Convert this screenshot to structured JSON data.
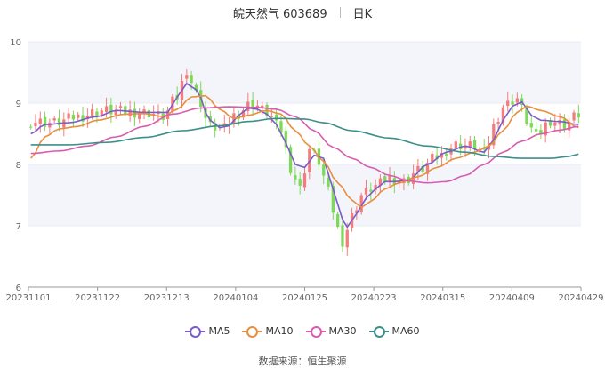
{
  "header": {
    "name": "皖天然气 603689",
    "period": "日K"
  },
  "source": "数据来源：恒生聚源",
  "chart_data": {
    "type": "candlestick_with_lines",
    "ylim": [
      6,
      10
    ],
    "yticks": [
      6,
      7,
      8,
      9,
      10
    ],
    "xticks": [
      "20231101",
      "20231122",
      "20231213",
      "20240104",
      "20240125",
      "20240223",
      "20240315",
      "20240409",
      "20240429"
    ],
    "n_days": 117,
    "colors": {
      "up": "#f47c7c",
      "down": "#7ed957",
      "grid": "#e8ecf4",
      "band": "#f3f5fb"
    },
    "series": [
      {
        "name": "MA5",
        "color": "#7b5cc8",
        "anchors": [
          [
            0,
            8.5
          ],
          [
            3,
            8.65
          ],
          [
            8,
            8.68
          ],
          [
            14,
            8.78
          ],
          [
            18,
            8.88
          ],
          [
            24,
            8.85
          ],
          [
            29,
            8.85
          ],
          [
            31,
            9.1
          ],
          [
            33,
            9.32
          ],
          [
            35,
            9.22
          ],
          [
            38,
            8.72
          ],
          [
            40,
            8.6
          ],
          [
            42,
            8.63
          ],
          [
            44,
            8.8
          ],
          [
            46,
            8.92
          ],
          [
            48,
            8.9
          ],
          [
            50,
            8.82
          ],
          [
            52,
            8.65
          ],
          [
            54,
            8.35
          ],
          [
            56,
            8.0
          ],
          [
            58,
            7.95
          ],
          [
            60,
            8.15
          ],
          [
            62,
            8.1
          ],
          [
            64,
            7.6
          ],
          [
            66,
            7.1
          ],
          [
            67,
            6.98
          ],
          [
            69,
            7.2
          ],
          [
            71,
            7.45
          ],
          [
            73,
            7.6
          ],
          [
            75,
            7.72
          ],
          [
            77,
            7.72
          ],
          [
            80,
            7.75
          ],
          [
            84,
            8.0
          ],
          [
            88,
            8.2
          ],
          [
            92,
            8.3
          ],
          [
            96,
            8.2
          ],
          [
            98,
            8.4
          ],
          [
            100,
            8.72
          ],
          [
            102,
            8.95
          ],
          [
            104,
            9.02
          ],
          [
            106,
            8.8
          ],
          [
            108,
            8.72
          ],
          [
            112,
            8.7
          ],
          [
            116,
            8.65
          ]
        ]
      },
      {
        "name": "MA10",
        "color": "#e88e3e",
        "anchors": [
          [
            0,
            8.1
          ],
          [
            3,
            8.45
          ],
          [
            6,
            8.58
          ],
          [
            10,
            8.62
          ],
          [
            14,
            8.72
          ],
          [
            20,
            8.82
          ],
          [
            24,
            8.83
          ],
          [
            28,
            8.78
          ],
          [
            31,
            8.9
          ],
          [
            34,
            9.1
          ],
          [
            37,
            9.12
          ],
          [
            40,
            8.9
          ],
          [
            43,
            8.75
          ],
          [
            46,
            8.8
          ],
          [
            50,
            8.88
          ],
          [
            53,
            8.82
          ],
          [
            56,
            8.55
          ],
          [
            59,
            8.3
          ],
          [
            62,
            8.05
          ],
          [
            65,
            7.7
          ],
          [
            68,
            7.42
          ],
          [
            70,
            7.3
          ],
          [
            72,
            7.4
          ],
          [
            75,
            7.6
          ],
          [
            78,
            7.7
          ],
          [
            82,
            7.8
          ],
          [
            86,
            7.95
          ],
          [
            90,
            8.1
          ],
          [
            94,
            8.2
          ],
          [
            97,
            8.3
          ],
          [
            100,
            8.55
          ],
          [
            103,
            8.85
          ],
          [
            105,
            8.95
          ],
          [
            108,
            8.88
          ],
          [
            112,
            8.78
          ],
          [
            116,
            8.6
          ]
        ]
      },
      {
        "name": "MA30",
        "color": "#d85cb0",
        "anchors": [
          [
            0,
            8.18
          ],
          [
            6,
            8.22
          ],
          [
            12,
            8.3
          ],
          [
            18,
            8.45
          ],
          [
            24,
            8.62
          ],
          [
            30,
            8.82
          ],
          [
            36,
            8.92
          ],
          [
            42,
            8.94
          ],
          [
            48,
            8.93
          ],
          [
            52,
            8.9
          ],
          [
            56,
            8.78
          ],
          [
            60,
            8.55
          ],
          [
            64,
            8.28
          ],
          [
            68,
            8.1
          ],
          [
            72,
            7.95
          ],
          [
            76,
            7.82
          ],
          [
            80,
            7.73
          ],
          [
            84,
            7.7
          ],
          [
            88,
            7.72
          ],
          [
            92,
            7.82
          ],
          [
            96,
            8.0
          ],
          [
            100,
            8.2
          ],
          [
            104,
            8.38
          ],
          [
            108,
            8.5
          ],
          [
            112,
            8.56
          ],
          [
            116,
            8.62
          ]
        ]
      },
      {
        "name": "MA60",
        "color": "#3d8f8a",
        "anchors": [
          [
            0,
            8.32
          ],
          [
            8,
            8.32
          ],
          [
            16,
            8.36
          ],
          [
            24,
            8.44
          ],
          [
            32,
            8.55
          ],
          [
            40,
            8.63
          ],
          [
            46,
            8.7
          ],
          [
            52,
            8.75
          ],
          [
            58,
            8.74
          ],
          [
            62,
            8.68
          ],
          [
            68,
            8.55
          ],
          [
            76,
            8.43
          ],
          [
            84,
            8.3
          ],
          [
            92,
            8.2
          ],
          [
            98,
            8.13
          ],
          [
            104,
            8.1
          ],
          [
            110,
            8.1
          ],
          [
            114,
            8.13
          ],
          [
            116,
            8.17
          ]
        ]
      }
    ],
    "price_anchors": [
      [
        0,
        8.7
      ],
      [
        5,
        8.68
      ],
      [
        10,
        8.78
      ],
      [
        15,
        8.88
      ],
      [
        20,
        8.86
      ],
      [
        25,
        8.84
      ],
      [
        28,
        8.78
      ],
      [
        31,
        9.1
      ],
      [
        33,
        9.55
      ],
      [
        35,
        9.15
      ],
      [
        38,
        8.62
      ],
      [
        41,
        8.58
      ],
      [
        43,
        8.8
      ],
      [
        47,
        9.0
      ],
      [
        50,
        8.85
      ],
      [
        53,
        8.55
      ],
      [
        55,
        7.95
      ],
      [
        57,
        7.6
      ],
      [
        59,
        8.25
      ],
      [
        61,
        8.05
      ],
      [
        63,
        7.55
      ],
      [
        65,
        6.95
      ],
      [
        66,
        6.75
      ],
      [
        68,
        7.15
      ],
      [
        70,
        7.5
      ],
      [
        73,
        7.65
      ],
      [
        76,
        7.78
      ],
      [
        79,
        7.72
      ],
      [
        82,
        7.9
      ],
      [
        86,
        8.12
      ],
      [
        90,
        8.32
      ],
      [
        94,
        8.3
      ],
      [
        96,
        8.15
      ],
      [
        98,
        8.62
      ],
      [
        100,
        8.95
      ],
      [
        103,
        9.08
      ],
      [
        105,
        8.72
      ],
      [
        107,
        8.45
      ],
      [
        110,
        8.72
      ],
      [
        113,
        8.65
      ],
      [
        116,
        8.82
      ]
    ]
  },
  "legend": [
    {
      "name": "MA5",
      "color": "#7b5cc8"
    },
    {
      "name": "MA10",
      "color": "#e88e3e"
    },
    {
      "name": "MA30",
      "color": "#d85cb0"
    },
    {
      "name": "MA60",
      "color": "#3d8f8a"
    }
  ]
}
